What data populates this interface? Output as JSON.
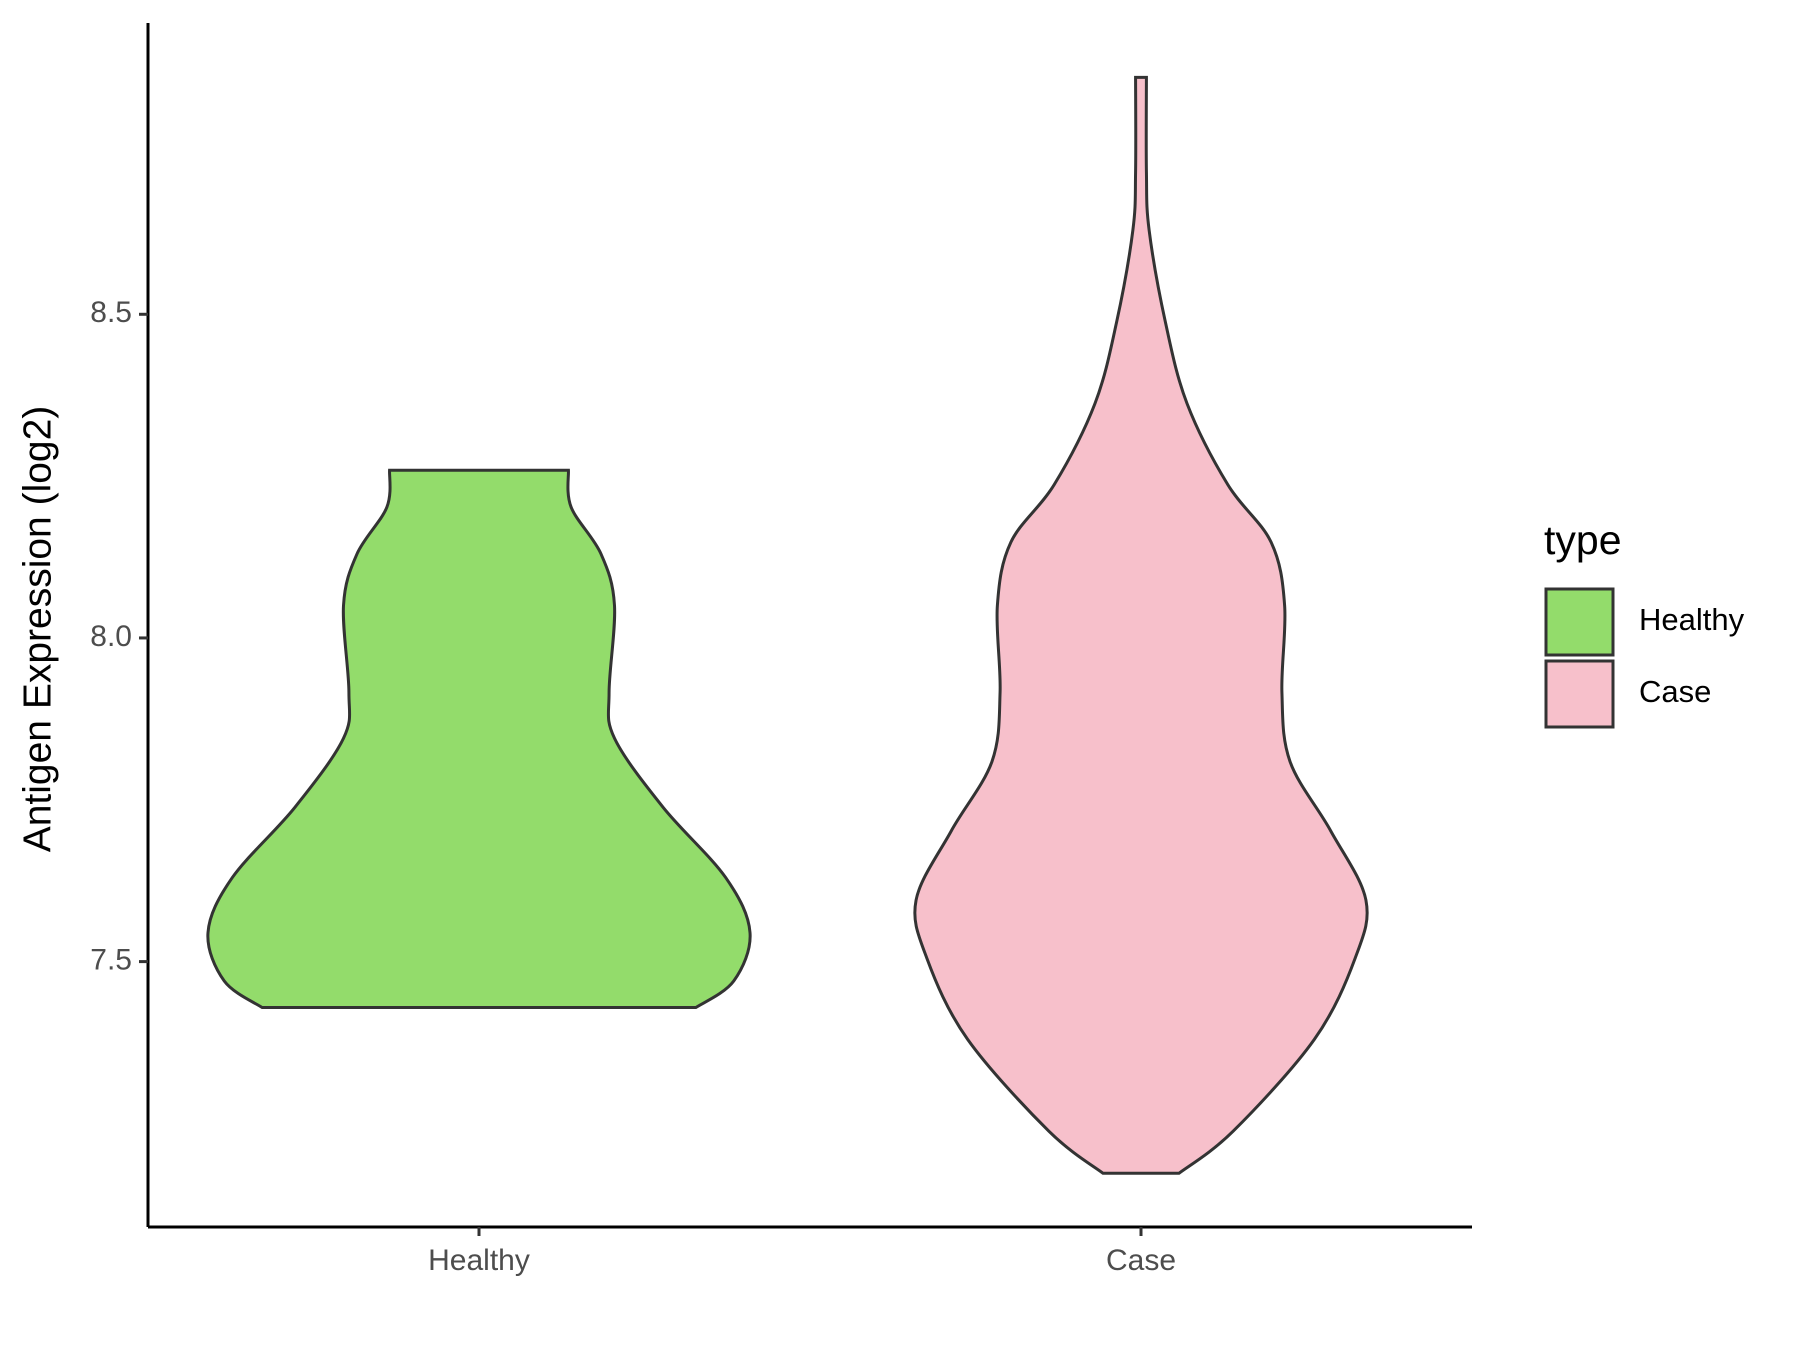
{
  "chart_data": {
    "type": "violin",
    "y_label": "Antigen Expression (log2)",
    "categories": [
      "Healthy",
      "Case"
    ],
    "ylim": [
      7.09,
      8.95
    ],
    "yticks": [
      7.5,
      {
        "value": 8.0,
        "label": "8.0"
      },
      8.5
    ],
    "legend_title": "type",
    "legend_position": "right",
    "series": [
      {
        "name": "Healthy",
        "color": "#93dc6b",
        "y": [
          7.429,
          7.47,
          7.545,
          7.63,
          7.738,
          7.845,
          7.916,
          8.05,
          8.13,
          8.202,
          8.259
        ],
        "density": [
          0.8,
          0.94,
          1.0,
          0.91,
          0.68,
          0.5,
          0.48,
          0.5,
          0.45,
          0.34,
          0.33
        ]
      },
      {
        "name": "Case",
        "color": "#f7c0cb",
        "y": [
          7.173,
          7.238,
          7.38,
          7.505,
          7.595,
          7.702,
          7.809,
          7.916,
          8.05,
          8.148,
          8.237,
          8.362,
          8.488,
          8.63,
          8.72,
          8.866
        ],
        "density": [
          0.14,
          0.34,
          0.64,
          0.79,
          0.83,
          0.7,
          0.55,
          0.52,
          0.53,
          0.48,
          0.32,
          0.17,
          0.09,
          0.03,
          0.02,
          0.02
        ]
      }
    ]
  }
}
